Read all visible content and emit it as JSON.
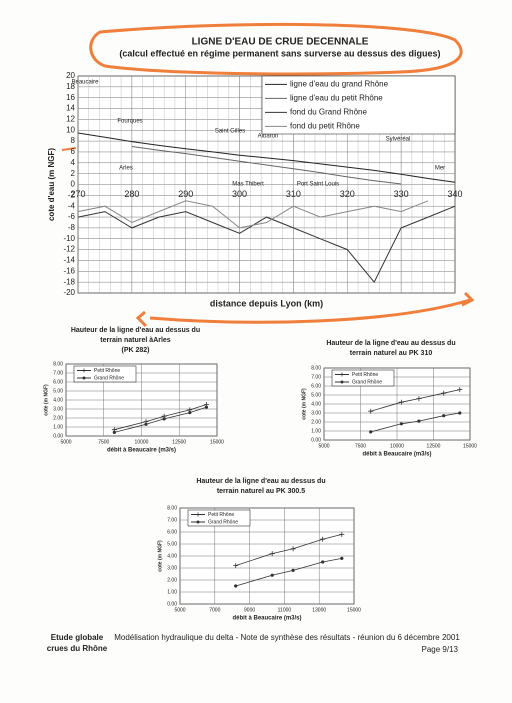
{
  "chart_data": [
    {
      "type": "line",
      "title": "LIGNE D'EAU DE CRUE DECENNALE",
      "subtitle": "(calcul effectué en régime permanent sans surverse au dessus des digues)",
      "x_label": "distance depuis Lyon (km)",
      "y_label": "cote d'eau (m NGF)",
      "x": [
        270,
        275,
        280,
        285,
        290,
        295,
        300,
        305,
        310,
        315,
        320,
        325,
        330,
        335,
        340
      ],
      "xlim": [
        270,
        340
      ],
      "xticks": [
        270,
        280,
        290,
        300,
        310,
        320,
        330,
        340
      ],
      "ylim": [
        -20,
        20
      ],
      "yticks": [
        -20,
        -18,
        -16,
        -14,
        -12,
        -10,
        -8,
        -6,
        -4,
        -2,
        0,
        2,
        4,
        6,
        8,
        10,
        12,
        14,
        16,
        18,
        20
      ],
      "grid": true,
      "legend": "upper right",
      "series": [
        {
          "name": "ligne d'eau du grand Rhône",
          "color": "#222222",
          "values": [
            9.5,
            8.7,
            7.9,
            7.2,
            6.6,
            6.0,
            5.4,
            4.9,
            4.4,
            3.8,
            3.2,
            2.6,
            1.9,
            1.1,
            0.4
          ]
        },
        {
          "name": "ligne d'eau du petit Rhône",
          "color": "#666666",
          "values": [
            null,
            null,
            7.0,
            6.3,
            5.7,
            5.0,
            4.3,
            3.6,
            2.9,
            2.2,
            1.4,
            0.7,
            0.1,
            null,
            null
          ]
        },
        {
          "name": "fond du Grand Rhône",
          "color": "#333333",
          "values": [
            -6,
            -5,
            -8,
            -6,
            -5,
            -7,
            -9,
            -6,
            -8,
            -10,
            -12,
            -18,
            -8,
            -6,
            -4
          ]
        },
        {
          "name": "fond du petit Rhône",
          "color": "#888888",
          "values": [
            -5,
            -4,
            -7,
            -5,
            -3,
            -4,
            -8,
            -7,
            -4,
            -6,
            -5,
            -4,
            -5,
            -3,
            null
          ]
        }
      ],
      "annotations": [
        "Beaucaire",
        "Fourques",
        "Arles",
        "Saint Gilles",
        "Albaron",
        "Mas Thibert",
        "Port Saint Louis",
        "Sylvéréal",
        "Mer"
      ]
    },
    {
      "type": "line",
      "title": [
        "Hauteur de la ligne d'eau au dessus du",
        "terrain naturel àArles",
        "(PK 282)"
      ],
      "x_label": "débit à Beaucaire (m3/s)",
      "y_label": "cote (m NGF)",
      "x": [
        8200,
        10300,
        11500,
        13200,
        14300
      ],
      "xlim": [
        5000,
        15000
      ],
      "xticks": [
        5000,
        7500,
        10000,
        12500,
        15000
      ],
      "ylim": [
        0,
        8
      ],
      "yticks": [
        {
          "value": 0,
          "label": "0.00"
        },
        {
          "value": 1,
          "label": "1.00"
        },
        {
          "value": 2,
          "label": "2.00"
        },
        {
          "value": 3,
          "label": "3.00"
        },
        {
          "value": 4,
          "label": "4.00"
        },
        {
          "value": 5,
          "label": "5.00"
        },
        {
          "value": 6,
          "label": "6.00"
        },
        {
          "value": 7,
          "label": "7.00"
        },
        {
          "value": 8,
          "label": "8.00"
        }
      ],
      "grid": true,
      "legend": "upper left",
      "series": [
        {
          "name": "Petit Rhône",
          "color": "#333333",
          "marker": "+",
          "values": [
            0.7,
            1.6,
            2.2,
            2.9,
            3.5
          ]
        },
        {
          "name": "Grand Rhône",
          "color": "#333333",
          "marker": "o",
          "values": [
            0.4,
            1.3,
            1.9,
            2.6,
            3.2
          ]
        }
      ]
    },
    {
      "type": "line",
      "title": [
        "Hauteur  de la ligne d'eau au dessus du",
        "terrain naturel au PK 310"
      ],
      "x_label": "débit à Beaucaire (m3/s)",
      "y_label": "cote (m NGF)",
      "x": [
        8200,
        10300,
        11500,
        13200,
        14300
      ],
      "xlim": [
        5000,
        15000
      ],
      "xticks": [
        5000,
        7500,
        10000,
        12500,
        15000
      ],
      "ylim": [
        0,
        8
      ],
      "yticks": [
        {
          "value": 0,
          "label": "0.00"
        },
        {
          "value": 1,
          "label": "1.00"
        },
        {
          "value": 2,
          "label": "2.00"
        },
        {
          "value": 3,
          "label": "3.00"
        },
        {
          "value": 4,
          "label": "4.00"
        },
        {
          "value": 5,
          "label": "5.00"
        },
        {
          "value": 6,
          "label": "6.00"
        },
        {
          "value": 7,
          "label": "7.00"
        },
        {
          "value": 8,
          "label": "8.00"
        }
      ],
      "grid": true,
      "legend": "upper left",
      "series": [
        {
          "name": "Petit Rhône",
          "color": "#333333",
          "marker": "+",
          "values": [
            3.2,
            4.2,
            4.6,
            5.2,
            5.6
          ]
        },
        {
          "name": "Grand Rhône",
          "color": "#333333",
          "marker": "o",
          "values": [
            0.9,
            1.8,
            2.1,
            2.7,
            3.0
          ]
        }
      ]
    },
    {
      "type": "line",
      "title": [
        "Hauteur  de la ligne d'eau au dessus du",
        "terrain naturel au PK 300.5"
      ],
      "x_label": "débit à Beaucaire (m3/s)",
      "y_label": "cote (m NGF)",
      "x": [
        8200,
        10300,
        11500,
        13200,
        14300
      ],
      "xlim": [
        5000,
        15000
      ],
      "xticks": [
        5000,
        7000,
        9000,
        11000,
        13000,
        15000
      ],
      "ylim": [
        0,
        8
      ],
      "yticks": [
        {
          "value": 0,
          "label": "0.00"
        },
        {
          "value": 1,
          "label": "1.00"
        },
        {
          "value": 2,
          "label": "2.00"
        },
        {
          "value": 3,
          "label": "3.00"
        },
        {
          "value": 4,
          "label": "4.00"
        },
        {
          "value": 5,
          "label": "5.00"
        },
        {
          "value": 6,
          "label": "6.00"
        },
        {
          "value": 7,
          "label": "7.00"
        },
        {
          "value": 8,
          "label": "8.00"
        }
      ],
      "grid": true,
      "legend": "upper left",
      "series": [
        {
          "name": "Petit Rhône",
          "color": "#333333",
          "marker": "+",
          "values": [
            3.2,
            4.2,
            4.6,
            5.4,
            5.8
          ]
        },
        {
          "name": "Grand Rhône",
          "color": "#333333",
          "marker": "o",
          "values": [
            1.5,
            2.4,
            2.8,
            3.5,
            3.8
          ]
        }
      ]
    }
  ],
  "footer": {
    "study": [
      "Etude globale",
      "crues du Rhône"
    ],
    "description": "Modélisation hydraulique du delta - Note de synthèse des résultats - réunion du 6 décembre 2001",
    "page": "Page 9/13"
  }
}
